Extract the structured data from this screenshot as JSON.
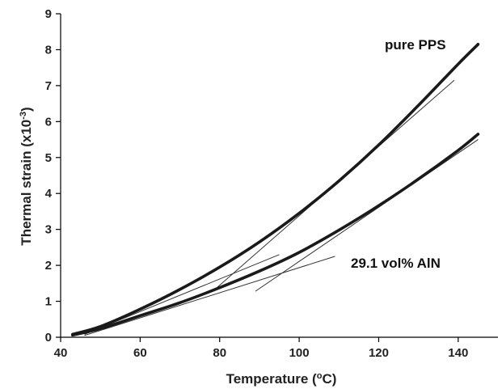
{
  "chart_data": {
    "type": "line",
    "xlabel_text": "Temperature (",
    "xlabel_sup": "o",
    "xlabel_tail": "C)",
    "ylabel_text": "Thermal strain (x10",
    "ylabel_sup": "-3",
    "ylabel_tail": ")",
    "xlim": [
      40,
      150
    ],
    "ylim": [
      0,
      9
    ],
    "xticks": [
      40,
      60,
      80,
      100,
      120,
      140
    ],
    "yticks": [
      0,
      1,
      2,
      3,
      4,
      5,
      6,
      7,
      8,
      9
    ],
    "grid": false,
    "series": [
      {
        "annotation": "pure PPS",
        "x": [
          43,
          50,
          60,
          70,
          80,
          90,
          100,
          110,
          120,
          130,
          140,
          145
        ],
        "y": [
          0.08,
          0.3,
          0.78,
          1.33,
          1.95,
          2.65,
          3.45,
          4.35,
          5.35,
          6.45,
          7.6,
          8.15
        ]
      },
      {
        "annotation": "29.1 vol% AlN",
        "x": [
          43,
          50,
          60,
          70,
          80,
          90,
          100,
          110,
          120,
          130,
          140,
          145
        ],
        "y": [
          0.06,
          0.24,
          0.6,
          0.96,
          1.38,
          1.84,
          2.36,
          2.98,
          3.66,
          4.4,
          5.2,
          5.65
        ]
      }
    ],
    "tangents": [
      {
        "x": [
          46,
          95
        ],
        "y": [
          0.08,
          2.3
        ]
      },
      {
        "x": [
          79,
          139
        ],
        "y": [
          1.35,
          7.15
        ]
      },
      {
        "x": [
          46,
          109
        ],
        "y": [
          0.05,
          2.25
        ]
      },
      {
        "x": [
          89,
          145
        ],
        "y": [
          1.28,
          5.5
        ]
      }
    ]
  }
}
